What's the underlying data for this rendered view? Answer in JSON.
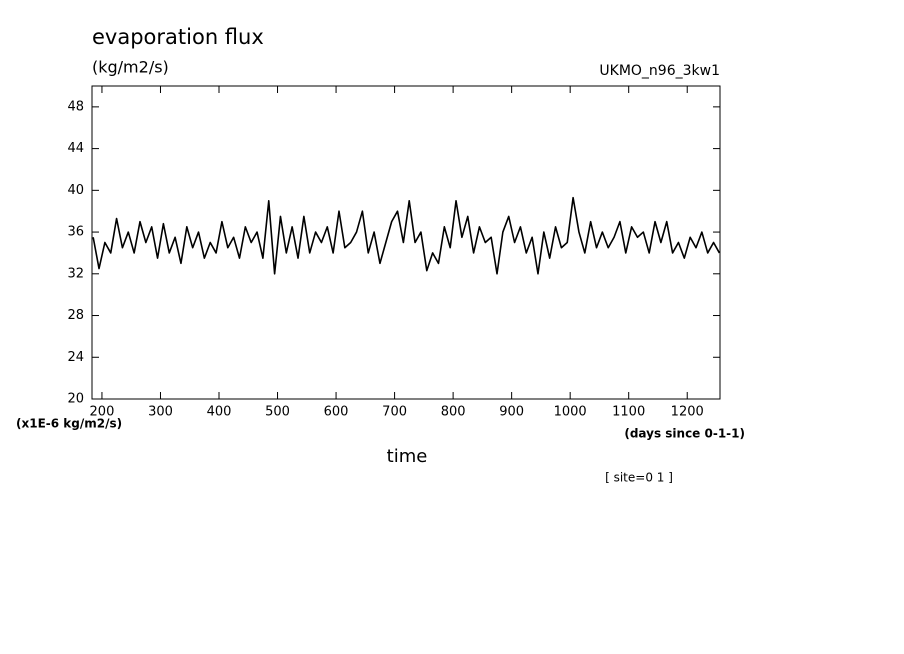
{
  "chart_data": {
    "type": "line",
    "title": "evaporation flux",
    "subtitle": "(kg/m2/s)",
    "model": "UKMO_n96_3kw1",
    "y_unit": "(x1E-6 kg/m2/s)",
    "x_label": "time",
    "x_unit": "(days since 0-1-1)",
    "annotation": "[ site=0 1 ]",
    "color": "#000000",
    "xlim": [
      183,
      1256
    ],
    "ylim": [
      20,
      50
    ],
    "xticks": [
      200,
      300,
      400,
      500,
      600,
      700,
      800,
      900,
      1000,
      1100,
      1200
    ],
    "yticks": [
      20,
      24,
      28,
      32,
      36,
      40,
      44,
      48
    ],
    "x": [
      185,
      195,
      205,
      215,
      225,
      235,
      245,
      255,
      265,
      275,
      285,
      295,
      305,
      315,
      325,
      335,
      345,
      355,
      365,
      375,
      385,
      395,
      405,
      415,
      425,
      435,
      445,
      455,
      465,
      475,
      485,
      495,
      505,
      515,
      525,
      535,
      545,
      555,
      565,
      575,
      585,
      595,
      605,
      615,
      625,
      635,
      645,
      655,
      665,
      675,
      685,
      695,
      705,
      715,
      725,
      735,
      745,
      755,
      765,
      775,
      785,
      795,
      805,
      815,
      825,
      835,
      845,
      855,
      865,
      875,
      885,
      895,
      905,
      915,
      925,
      935,
      945,
      955,
      965,
      975,
      985,
      995,
      1005,
      1015,
      1025,
      1035,
      1045,
      1055,
      1065,
      1075,
      1085,
      1095,
      1105,
      1115,
      1125,
      1135,
      1145,
      1155,
      1165,
      1175,
      1185,
      1195,
      1205,
      1215,
      1225,
      1235,
      1245,
      1255
    ],
    "values": [
      35.5,
      32.5,
      35,
      34,
      37.3,
      34.5,
      36,
      34,
      37,
      35,
      36.5,
      33.5,
      36.8,
      34,
      35.5,
      33,
      36.5,
      34.5,
      36,
      33.5,
      35,
      34,
      37,
      34.5,
      35.5,
      33.5,
      36.5,
      35,
      36,
      33.5,
      39,
      32,
      37.5,
      34,
      36.5,
      33.5,
      37.5,
      34,
      36,
      35,
      36.5,
      34,
      38,
      34.5,
      35,
      36,
      38,
      34,
      36,
      33,
      35,
      37,
      38,
      35,
      39,
      35,
      36,
      32.3,
      34,
      33,
      36.5,
      34.5,
      39,
      35.5,
      37.5,
      34,
      36.5,
      35,
      35.5,
      32,
      36,
      37.5,
      35,
      36.5,
      34,
      35.5,
      32,
      36,
      33.5,
      36.5,
      34.5,
      35,
      39.3,
      36,
      34,
      37,
      34.5,
      36,
      34.5,
      35.5,
      37,
      34,
      36.5,
      35.5,
      36,
      34,
      37,
      35,
      37,
      34,
      35,
      33.5,
      35.5,
      34.5,
      36,
      34,
      35,
      34
    ]
  }
}
